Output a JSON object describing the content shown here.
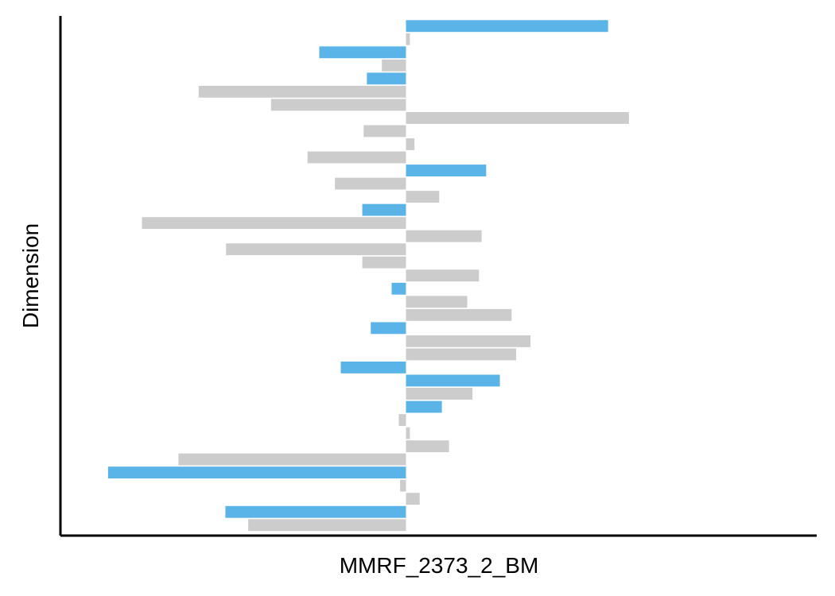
{
  "chart_data": {
    "type": "bar",
    "orientation": "horizontal",
    "xlabel": "MMRF_2373_2_BM",
    "ylabel": "Dimension",
    "xlim": [
      -5.3,
      6.3
    ],
    "grid": false,
    "legend": "none",
    "colors": {
      "highlight": "#5BB4E8",
      "neutral": "#CCCCCC",
      "axis": "#000000"
    },
    "bars": [
      {
        "value": 3.1,
        "highlight": true
      },
      {
        "value": 0.06,
        "highlight": false
      },
      {
        "value": -1.33,
        "highlight": true
      },
      {
        "value": -0.37,
        "highlight": false
      },
      {
        "value": -0.6,
        "highlight": true
      },
      {
        "value": -3.18,
        "highlight": false
      },
      {
        "value": -2.07,
        "highlight": false
      },
      {
        "value": 3.42,
        "highlight": false
      },
      {
        "value": -0.65,
        "highlight": false
      },
      {
        "value": 0.13,
        "highlight": false
      },
      {
        "value": -1.51,
        "highlight": false
      },
      {
        "value": 1.23,
        "highlight": true
      },
      {
        "value": -1.09,
        "highlight": false
      },
      {
        "value": 0.51,
        "highlight": false
      },
      {
        "value": -0.67,
        "highlight": true
      },
      {
        "value": -4.05,
        "highlight": false
      },
      {
        "value": 1.16,
        "highlight": false
      },
      {
        "value": -2.76,
        "highlight": false
      },
      {
        "value": -0.67,
        "highlight": false
      },
      {
        "value": 1.12,
        "highlight": false
      },
      {
        "value": -0.22,
        "highlight": true
      },
      {
        "value": 0.94,
        "highlight": false
      },
      {
        "value": 1.62,
        "highlight": false
      },
      {
        "value": -0.54,
        "highlight": true
      },
      {
        "value": 1.91,
        "highlight": false
      },
      {
        "value": 1.69,
        "highlight": false
      },
      {
        "value": -1.0,
        "highlight": true
      },
      {
        "value": 1.44,
        "highlight": true
      },
      {
        "value": 1.02,
        "highlight": false
      },
      {
        "value": 0.55,
        "highlight": true
      },
      {
        "value": -0.11,
        "highlight": false
      },
      {
        "value": 0.06,
        "highlight": false
      },
      {
        "value": 0.66,
        "highlight": false
      },
      {
        "value": -3.49,
        "highlight": false
      },
      {
        "value": -4.57,
        "highlight": true
      },
      {
        "value": -0.09,
        "highlight": false
      },
      {
        "value": 0.21,
        "highlight": false
      },
      {
        "value": -2.77,
        "highlight": true
      },
      {
        "value": -2.42,
        "highlight": false
      }
    ]
  }
}
